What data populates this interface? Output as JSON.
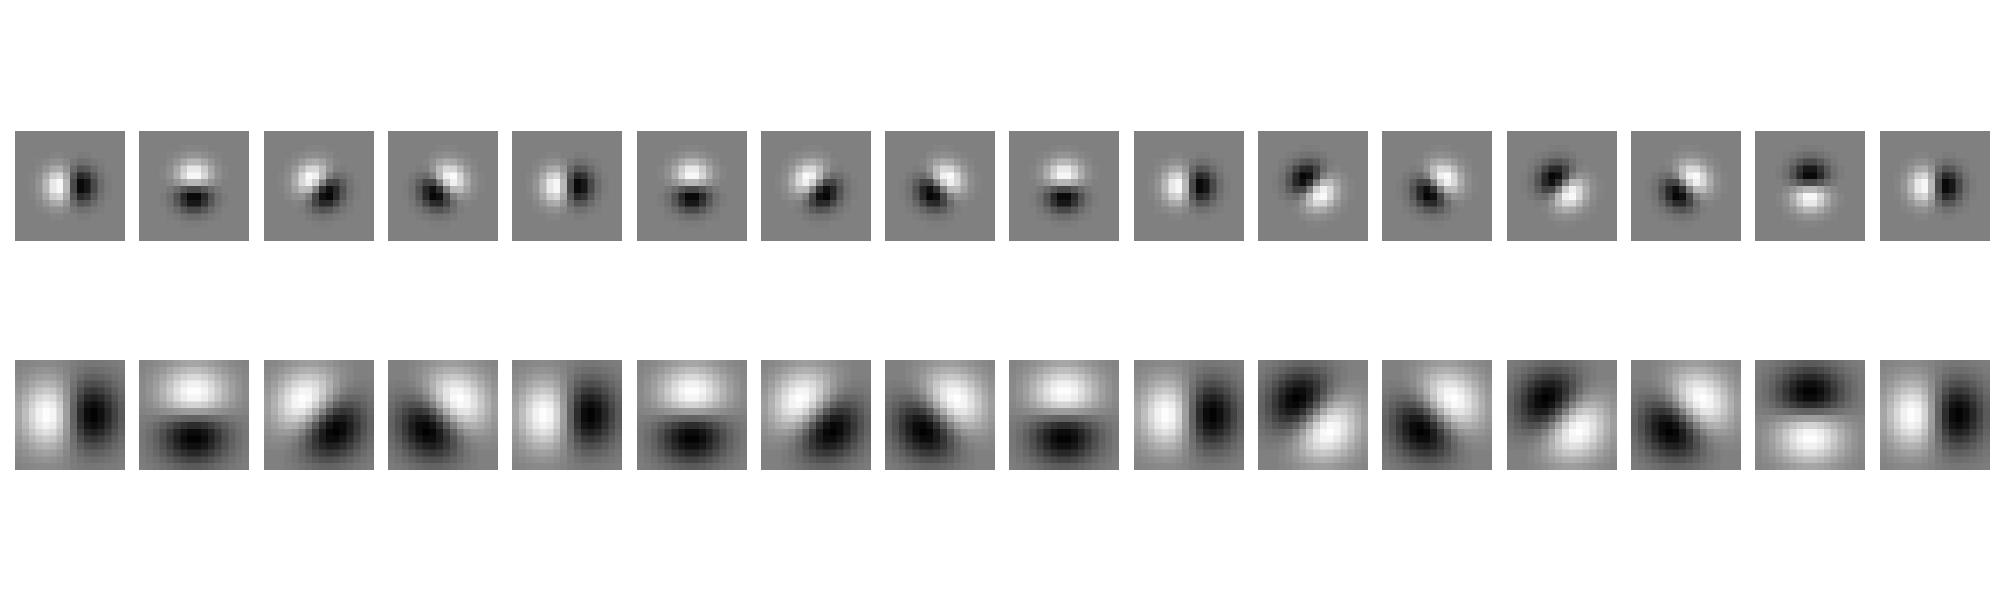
{
  "figure": {
    "background": "#ffffff",
    "neutral_gray": "#808080",
    "rows": [
      {
        "name": "small-scale",
        "orientations_deg": [
          0,
          90,
          45,
          135,
          180,
          270,
          225,
          315,
          90,
          180,
          45,
          135,
          225,
          315,
          270,
          0
        ],
        "polarity": [
          1,
          1,
          1,
          1,
          -1,
          -1,
          -1,
          -1,
          1,
          -1,
          -1,
          1,
          1,
          -1,
          1,
          1
        ]
      },
      {
        "name": "large-scale",
        "orientations_deg": [
          0,
          90,
          45,
          135,
          180,
          270,
          225,
          315,
          90,
          180,
          45,
          135,
          225,
          315,
          270,
          0
        ],
        "polarity": [
          1,
          1,
          1,
          1,
          -1,
          -1,
          -1,
          -1,
          1,
          -1,
          -1,
          1,
          1,
          -1,
          1,
          1
        ]
      }
    ]
  }
}
